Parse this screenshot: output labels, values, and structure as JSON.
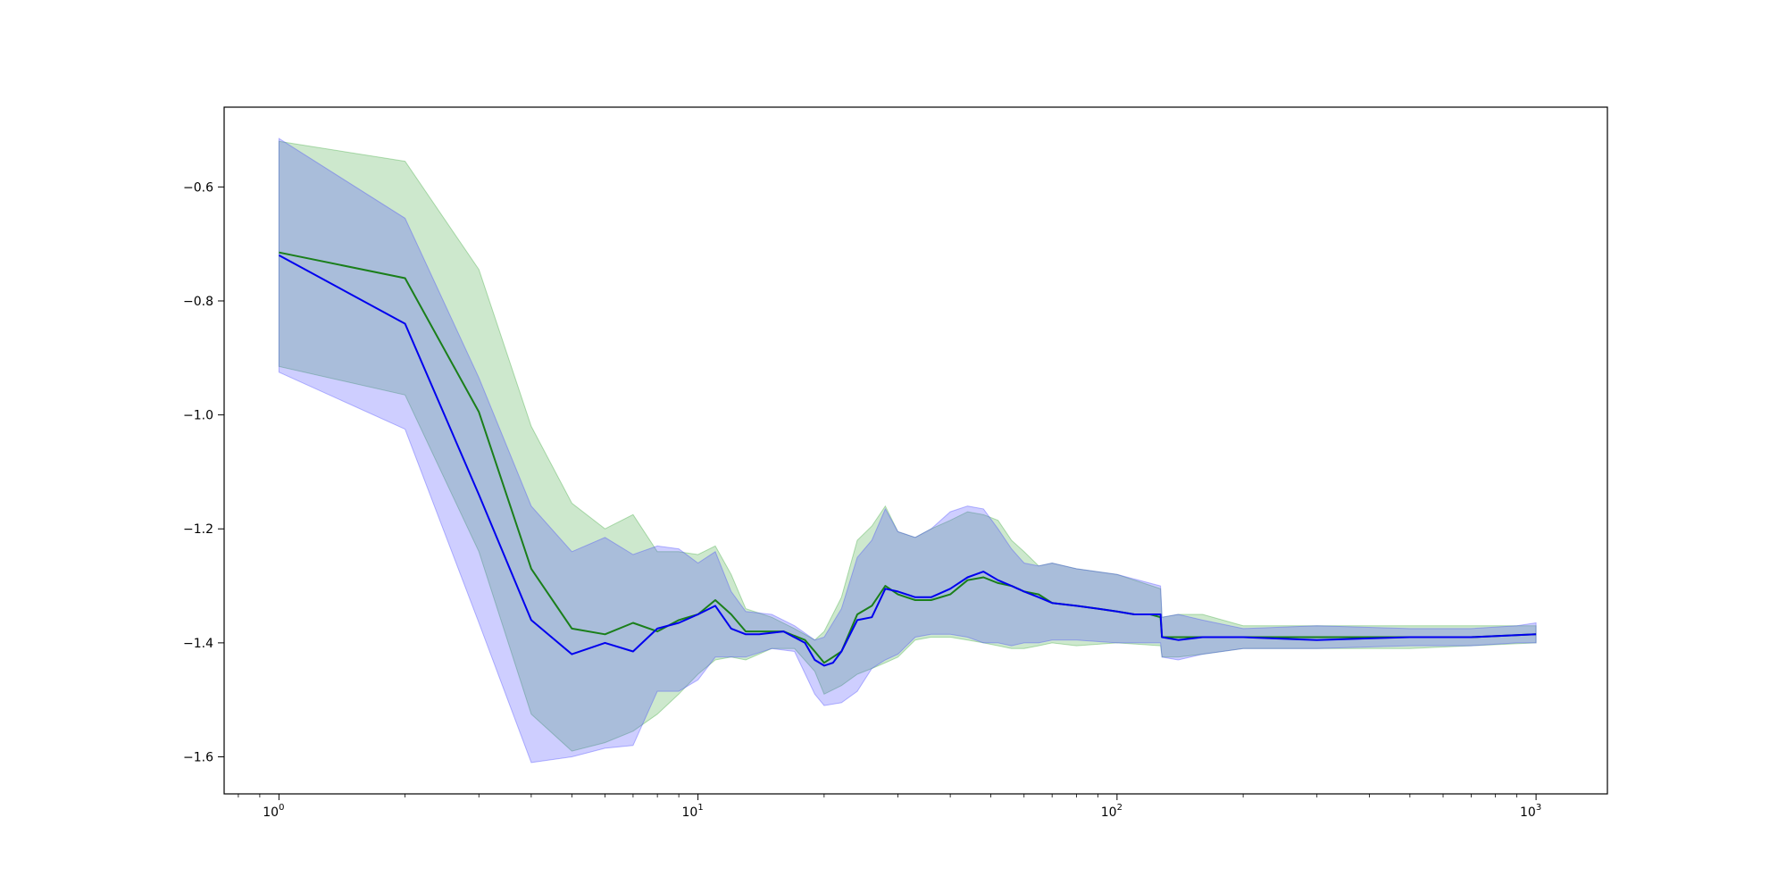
{
  "chart_data": {
    "type": "line",
    "title": "",
    "xlabel": "",
    "ylabel": "",
    "xscale": "log",
    "xlim": [
      0.74,
      1480
    ],
    "ylim": [
      -1.665,
      -0.46
    ],
    "grid": false,
    "legend": "none",
    "x_ticks": [
      {
        "value": 1,
        "base": "10",
        "exp": "0"
      },
      {
        "value": 10,
        "base": "10",
        "exp": "1"
      },
      {
        "value": 100,
        "base": "10",
        "exp": "2"
      },
      {
        "value": 1000,
        "base": "10",
        "exp": "3"
      }
    ],
    "y_ticks": [
      {
        "value": -0.6,
        "label": "−0.6"
      },
      {
        "value": -0.8,
        "label": "−0.8"
      },
      {
        "value": -1.0,
        "label": "−1.0"
      },
      {
        "value": -1.2,
        "label": "−1.2"
      },
      {
        "value": -1.4,
        "label": "−1.4"
      },
      {
        "value": -1.6,
        "label": "−1.6"
      }
    ],
    "series": [
      {
        "color": "#1a7f1a",
        "band_color": "#2ca02c",
        "band_opacity": 0.24,
        "points": [
          [
            1,
            -0.715
          ],
          [
            2,
            -0.76
          ],
          [
            3,
            -0.995
          ],
          [
            4,
            -1.27
          ],
          [
            5,
            -1.375
          ],
          [
            6,
            -1.385
          ],
          [
            7,
            -1.365
          ],
          [
            8,
            -1.38
          ],
          [
            9,
            -1.36
          ],
          [
            10,
            -1.35
          ],
          [
            11,
            -1.325
          ],
          [
            12,
            -1.35
          ],
          [
            13,
            -1.38
          ],
          [
            14,
            -1.38
          ],
          [
            16,
            -1.38
          ],
          [
            18,
            -1.395
          ],
          [
            19,
            -1.415
          ],
          [
            20,
            -1.435
          ],
          [
            21,
            -1.425
          ],
          [
            22,
            -1.415
          ],
          [
            24,
            -1.35
          ],
          [
            26,
            -1.335
          ],
          [
            28,
            -1.3
          ],
          [
            30,
            -1.315
          ],
          [
            33,
            -1.325
          ],
          [
            36,
            -1.325
          ],
          [
            40,
            -1.315
          ],
          [
            44,
            -1.29
          ],
          [
            48,
            -1.285
          ],
          [
            52,
            -1.295
          ],
          [
            56,
            -1.3
          ],
          [
            60,
            -1.31
          ],
          [
            65,
            -1.315
          ],
          [
            70,
            -1.33
          ],
          [
            80,
            -1.335
          ],
          [
            90,
            -1.34
          ],
          [
            100,
            -1.345
          ],
          [
            110,
            -1.35
          ],
          [
            120,
            -1.35
          ],
          [
            127,
            -1.355
          ],
          [
            128,
            -1.39
          ],
          [
            140,
            -1.39
          ],
          [
            160,
            -1.39
          ],
          [
            200,
            -1.39
          ],
          [
            300,
            -1.39
          ],
          [
            500,
            -1.39
          ],
          [
            700,
            -1.39
          ],
          [
            1000,
            -1.385
          ]
        ],
        "band": [
          [
            1,
            -0.52,
            -0.915
          ],
          [
            2,
            -0.555,
            -0.965
          ],
          [
            3,
            -0.745,
            -1.24
          ],
          [
            4,
            -1.02,
            -1.525
          ],
          [
            5,
            -1.155,
            -1.59
          ],
          [
            6,
            -1.2,
            -1.575
          ],
          [
            7,
            -1.175,
            -1.555
          ],
          [
            8,
            -1.24,
            -1.525
          ],
          [
            9,
            -1.24,
            -1.49
          ],
          [
            10,
            -1.245,
            -1.455
          ],
          [
            11,
            -1.23,
            -1.43
          ],
          [
            12,
            -1.28,
            -1.425
          ],
          [
            13,
            -1.34,
            -1.43
          ],
          [
            15,
            -1.355,
            -1.41
          ],
          [
            17,
            -1.375,
            -1.41
          ],
          [
            19,
            -1.395,
            -1.45
          ],
          [
            20,
            -1.38,
            -1.49
          ],
          [
            22,
            -1.32,
            -1.475
          ],
          [
            24,
            -1.22,
            -1.455
          ],
          [
            26,
            -1.195,
            -1.445
          ],
          [
            28,
            -1.16,
            -1.435
          ],
          [
            30,
            -1.205,
            -1.425
          ],
          [
            33,
            -1.215,
            -1.395
          ],
          [
            36,
            -1.2,
            -1.39
          ],
          [
            40,
            -1.185,
            -1.39
          ],
          [
            44,
            -1.17,
            -1.395
          ],
          [
            48,
            -1.175,
            -1.4
          ],
          [
            52,
            -1.185,
            -1.405
          ],
          [
            56,
            -1.22,
            -1.41
          ],
          [
            60,
            -1.24,
            -1.41
          ],
          [
            65,
            -1.265,
            -1.405
          ],
          [
            70,
            -1.26,
            -1.4
          ],
          [
            80,
            -1.27,
            -1.405
          ],
          [
            100,
            -1.28,
            -1.4
          ],
          [
            127,
            -1.305,
            -1.405
          ],
          [
            128,
            -1.355,
            -1.425
          ],
          [
            140,
            -1.35,
            -1.425
          ],
          [
            160,
            -1.35,
            -1.42
          ],
          [
            200,
            -1.37,
            -1.41
          ],
          [
            300,
            -1.37,
            -1.41
          ],
          [
            500,
            -1.37,
            -1.41
          ],
          [
            700,
            -1.37,
            -1.405
          ],
          [
            1000,
            -1.37,
            -1.4
          ]
        ]
      },
      {
        "color": "#0000ee",
        "band_color": "#4040ff",
        "band_opacity": 0.26,
        "points": [
          [
            1,
            -0.72
          ],
          [
            2,
            -0.84
          ],
          [
            3,
            -1.14
          ],
          [
            4,
            -1.36
          ],
          [
            5,
            -1.42
          ],
          [
            6,
            -1.4
          ],
          [
            7,
            -1.415
          ],
          [
            8,
            -1.375
          ],
          [
            9,
            -1.365
          ],
          [
            10,
            -1.35
          ],
          [
            11,
            -1.335
          ],
          [
            12,
            -1.375
          ],
          [
            13,
            -1.385
          ],
          [
            14,
            -1.385
          ],
          [
            16,
            -1.38
          ],
          [
            18,
            -1.4
          ],
          [
            19,
            -1.43
          ],
          [
            20,
            -1.44
          ],
          [
            21,
            -1.435
          ],
          [
            22,
            -1.415
          ],
          [
            24,
            -1.36
          ],
          [
            26,
            -1.355
          ],
          [
            28,
            -1.305
          ],
          [
            30,
            -1.31
          ],
          [
            33,
            -1.32
          ],
          [
            36,
            -1.32
          ],
          [
            40,
            -1.305
          ],
          [
            44,
            -1.285
          ],
          [
            48,
            -1.275
          ],
          [
            52,
            -1.29
          ],
          [
            56,
            -1.3
          ],
          [
            60,
            -1.31
          ],
          [
            65,
            -1.32
          ],
          [
            70,
            -1.33
          ],
          [
            80,
            -1.335
          ],
          [
            90,
            -1.34
          ],
          [
            100,
            -1.345
          ],
          [
            110,
            -1.35
          ],
          [
            120,
            -1.35
          ],
          [
            127,
            -1.35
          ],
          [
            128,
            -1.39
          ],
          [
            140,
            -1.395
          ],
          [
            160,
            -1.39
          ],
          [
            200,
            -1.39
          ],
          [
            300,
            -1.395
          ],
          [
            500,
            -1.39
          ],
          [
            700,
            -1.39
          ],
          [
            1000,
            -1.385
          ]
        ],
        "band": [
          [
            1,
            -0.515,
            -0.925
          ],
          [
            2,
            -0.655,
            -1.025
          ],
          [
            3,
            -0.935,
            -1.365
          ],
          [
            4,
            -1.16,
            -1.61
          ],
          [
            5,
            -1.24,
            -1.6
          ],
          [
            6,
            -1.215,
            -1.585
          ],
          [
            7,
            -1.245,
            -1.58
          ],
          [
            8,
            -1.23,
            -1.485
          ],
          [
            9,
            -1.235,
            -1.485
          ],
          [
            10,
            -1.26,
            -1.465
          ],
          [
            11,
            -1.24,
            -1.425
          ],
          [
            12,
            -1.31,
            -1.425
          ],
          [
            13,
            -1.345,
            -1.425
          ],
          [
            15,
            -1.35,
            -1.41
          ],
          [
            17,
            -1.37,
            -1.415
          ],
          [
            19,
            -1.395,
            -1.49
          ],
          [
            20,
            -1.39,
            -1.51
          ],
          [
            22,
            -1.34,
            -1.505
          ],
          [
            24,
            -1.25,
            -1.485
          ],
          [
            26,
            -1.22,
            -1.445
          ],
          [
            28,
            -1.165,
            -1.43
          ],
          [
            30,
            -1.205,
            -1.42
          ],
          [
            33,
            -1.215,
            -1.39
          ],
          [
            36,
            -1.2,
            -1.385
          ],
          [
            40,
            -1.17,
            -1.385
          ],
          [
            44,
            -1.16,
            -1.39
          ],
          [
            48,
            -1.165,
            -1.4
          ],
          [
            52,
            -1.2,
            -1.4
          ],
          [
            56,
            -1.235,
            -1.405
          ],
          [
            60,
            -1.26,
            -1.4
          ],
          [
            65,
            -1.265,
            -1.4
          ],
          [
            70,
            -1.26,
            -1.395
          ],
          [
            80,
            -1.27,
            -1.395
          ],
          [
            100,
            -1.28,
            -1.4
          ],
          [
            127,
            -1.3,
            -1.4
          ],
          [
            128,
            -1.355,
            -1.425
          ],
          [
            140,
            -1.35,
            -1.43
          ],
          [
            160,
            -1.36,
            -1.42
          ],
          [
            200,
            -1.375,
            -1.41
          ],
          [
            300,
            -1.37,
            -1.41
          ],
          [
            500,
            -1.375,
            -1.405
          ],
          [
            700,
            -1.375,
            -1.405
          ],
          [
            900,
            -1.37,
            -1.4
          ],
          [
            1000,
            -1.365,
            -1.4
          ]
        ]
      }
    ]
  }
}
